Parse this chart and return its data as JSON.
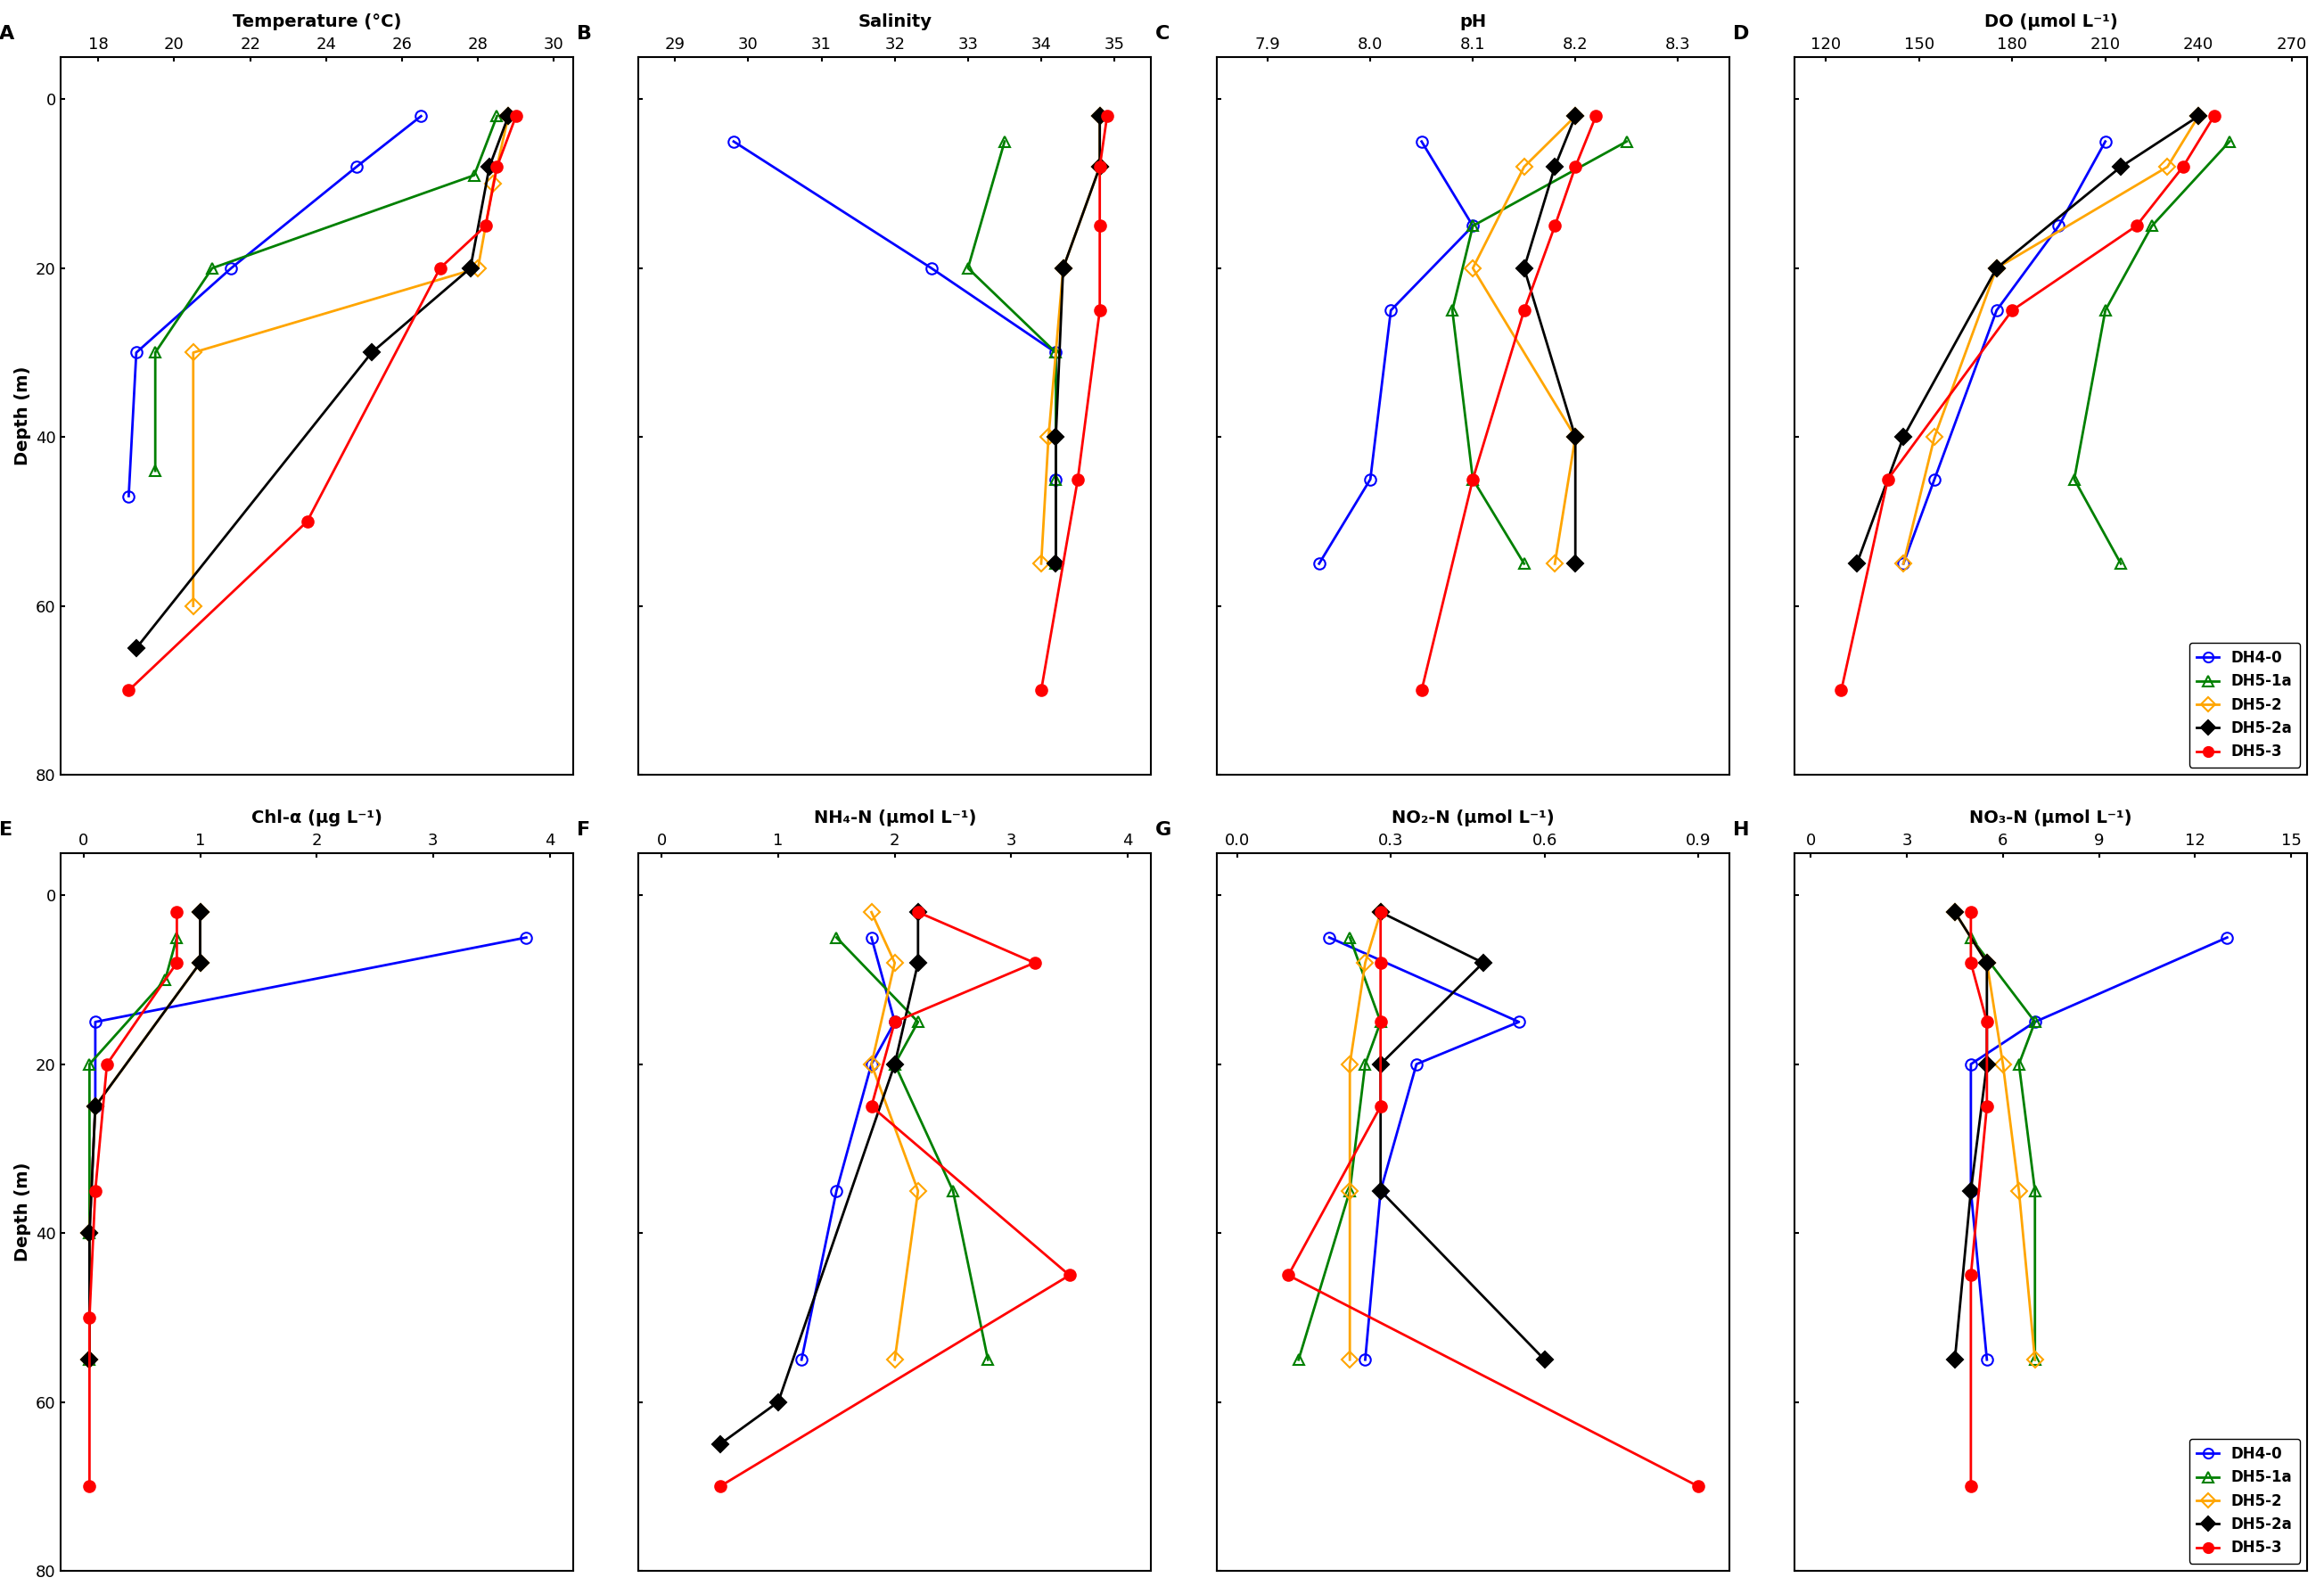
{
  "panels": {
    "A": {
      "title": "Temperature (°C)",
      "xlabel_ticks": [
        18,
        20,
        22,
        24,
        26,
        28,
        30
      ],
      "xlim": [
        17,
        30.5
      ],
      "series": {
        "DH4-0": {
          "x": [
            26.5,
            24.8,
            21.5,
            19.0,
            18.8
          ],
          "y": [
            2,
            8,
            20,
            30,
            47
          ]
        },
        "DH5-1a": {
          "x": [
            28.5,
            27.9,
            21.0,
            19.5,
            19.5
          ],
          "y": [
            2,
            9,
            20,
            30,
            44
          ]
        },
        "DH5-2": {
          "x": [
            28.8,
            28.4,
            28.0,
            20.5,
            20.5
          ],
          "y": [
            2,
            10,
            20,
            30,
            60
          ]
        },
        "DH5-2a": {
          "x": [
            28.8,
            28.3,
            27.8,
            25.2,
            19.0
          ],
          "y": [
            2,
            8,
            20,
            30,
            65
          ]
        },
        "DH5-3": {
          "x": [
            29.0,
            28.5,
            28.2,
            27.0,
            23.5,
            18.8
          ],
          "y": [
            2,
            8,
            15,
            20,
            50,
            70
          ]
        }
      }
    },
    "B": {
      "title": "Salinity",
      "xlabel_ticks": [
        29,
        30,
        31,
        32,
        33,
        34,
        35
      ],
      "xlim": [
        28.5,
        35.5
      ],
      "series": {
        "DH4-0": {
          "x": [
            29.8,
            32.5,
            34.2,
            34.2,
            34.2
          ],
          "y": [
            5,
            20,
            30,
            45,
            55
          ]
        },
        "DH5-1a": {
          "x": [
            33.5,
            33.0,
            34.2,
            34.2,
            34.2
          ],
          "y": [
            5,
            20,
            30,
            45,
            55
          ]
        },
        "DH5-2": {
          "x": [
            34.8,
            34.8,
            34.3,
            34.1,
            34.0
          ],
          "y": [
            2,
            8,
            20,
            40,
            55
          ]
        },
        "DH5-2a": {
          "x": [
            34.8,
            34.8,
            34.3,
            34.2,
            34.2
          ],
          "y": [
            2,
            8,
            20,
            40,
            55
          ]
        },
        "DH5-3": {
          "x": [
            34.9,
            34.8,
            34.8,
            34.8,
            34.5,
            34.0
          ],
          "y": [
            2,
            8,
            15,
            25,
            45,
            70
          ]
        }
      }
    },
    "C": {
      "title": "pH",
      "xlabel_ticks": [
        7.9,
        8.0,
        8.1,
        8.2,
        8.3
      ],
      "xlim": [
        7.85,
        8.35
      ],
      "series": {
        "DH4-0": {
          "x": [
            8.05,
            8.1,
            8.02,
            8.0,
            7.95
          ],
          "y": [
            5,
            15,
            25,
            45,
            55
          ]
        },
        "DH5-1a": {
          "x": [
            8.25,
            8.1,
            8.08,
            8.1,
            8.15
          ],
          "y": [
            5,
            15,
            25,
            45,
            55
          ]
        },
        "DH5-2": {
          "x": [
            8.2,
            8.15,
            8.1,
            8.2,
            8.18
          ],
          "y": [
            2,
            8,
            20,
            40,
            55
          ]
        },
        "DH5-2a": {
          "x": [
            8.2,
            8.18,
            8.15,
            8.2,
            8.2
          ],
          "y": [
            2,
            8,
            20,
            40,
            55
          ]
        },
        "DH5-3": {
          "x": [
            8.22,
            8.2,
            8.18,
            8.15,
            8.1,
            8.05
          ],
          "y": [
            2,
            8,
            15,
            25,
            45,
            70
          ]
        }
      }
    },
    "D": {
      "title": "DO (μmol L⁻¹)",
      "xlabel_ticks": [
        120,
        150,
        180,
        210,
        240,
        270
      ],
      "xlim": [
        110,
        275
      ],
      "series": {
        "DH4-0": {
          "x": [
            210,
            195,
            175,
            155,
            145
          ],
          "y": [
            5,
            15,
            25,
            45,
            55
          ]
        },
        "DH5-1a": {
          "x": [
            250,
            225,
            210,
            200,
            215
          ],
          "y": [
            5,
            15,
            25,
            45,
            55
          ]
        },
        "DH5-2": {
          "x": [
            240,
            230,
            175,
            155,
            145
          ],
          "y": [
            2,
            8,
            20,
            40,
            55
          ]
        },
        "DH5-2a": {
          "x": [
            240,
            215,
            175,
            145,
            130
          ],
          "y": [
            2,
            8,
            20,
            40,
            55
          ]
        },
        "DH5-3": {
          "x": [
            245,
            235,
            220,
            180,
            140,
            125
          ],
          "y": [
            2,
            8,
            15,
            25,
            45,
            70
          ]
        }
      }
    },
    "E": {
      "title": "Chl-α (μg L⁻¹)",
      "xlabel_ticks": [
        0,
        1,
        2,
        3,
        4
      ],
      "xlim": [
        -0.2,
        4.2
      ],
      "series": {
        "DH4-0": {
          "x": [
            3.8,
            0.1,
            0.1,
            0.05,
            0.05
          ],
          "y": [
            5,
            15,
            25,
            40,
            55
          ]
        },
        "DH5-1a": {
          "x": [
            0.8,
            0.7,
            0.05,
            0.05,
            0.05
          ],
          "y": [
            5,
            10,
            20,
            40,
            55
          ]
        },
        "DH5-2": {
          "x": [
            1.0,
            1.0,
            0.1,
            0.05,
            0.05
          ],
          "y": [
            2,
            8,
            25,
            40,
            55
          ]
        },
        "DH5-2a": {
          "x": [
            1.0,
            1.0,
            0.1,
            0.05,
            0.05
          ],
          "y": [
            2,
            8,
            25,
            40,
            55
          ]
        },
        "DH5-3": {
          "x": [
            0.8,
            0.8,
            0.2,
            0.1,
            0.05,
            0.05
          ],
          "y": [
            2,
            8,
            20,
            35,
            50,
            70
          ]
        }
      }
    },
    "F": {
      "title": "NH₄-N (μmol L⁻¹)",
      "xlabel_ticks": [
        0,
        1,
        2,
        3,
        4
      ],
      "xlim": [
        -0.2,
        4.2
      ],
      "series": {
        "DH4-0": {
          "x": [
            1.8,
            2.0,
            1.8,
            1.5,
            1.2
          ],
          "y": [
            5,
            15,
            20,
            35,
            55
          ]
        },
        "DH5-1a": {
          "x": [
            1.5,
            2.2,
            2.0,
            2.5,
            2.8
          ],
          "y": [
            5,
            15,
            20,
            35,
            55
          ]
        },
        "DH5-2": {
          "x": [
            1.8,
            2.0,
            1.8,
            2.2,
            2.0
          ],
          "y": [
            2,
            8,
            20,
            35,
            55
          ]
        },
        "DH5-2a": {
          "x": [
            2.2,
            2.2,
            2.0,
            1.0,
            0.5
          ],
          "y": [
            2,
            8,
            20,
            60,
            65
          ]
        },
        "DH5-3": {
          "x": [
            2.2,
            3.2,
            2.0,
            1.8,
            3.5,
            0.5
          ],
          "y": [
            2,
            8,
            15,
            25,
            45,
            70
          ]
        }
      }
    },
    "G": {
      "title": "NO₂-N (μmol L⁻¹)",
      "xlabel_ticks": [
        0.0,
        0.3,
        0.6,
        0.9
      ],
      "xlim": [
        -0.04,
        0.96
      ],
      "series": {
        "DH4-0": {
          "x": [
            0.18,
            0.55,
            0.35,
            0.28,
            0.25
          ],
          "y": [
            5,
            15,
            20,
            35,
            55
          ]
        },
        "DH5-1a": {
          "x": [
            0.22,
            0.28,
            0.25,
            0.22,
            0.12
          ],
          "y": [
            5,
            15,
            20,
            35,
            55
          ]
        },
        "DH5-2": {
          "x": [
            0.28,
            0.25,
            0.22,
            0.22,
            0.22
          ],
          "y": [
            2,
            8,
            20,
            35,
            55
          ]
        },
        "DH5-2a": {
          "x": [
            0.28,
            0.48,
            0.28,
            0.28,
            0.6
          ],
          "y": [
            2,
            8,
            20,
            35,
            55
          ]
        },
        "DH5-3": {
          "x": [
            0.28,
            0.28,
            0.28,
            0.28,
            0.1,
            0.9
          ],
          "y": [
            2,
            8,
            15,
            25,
            45,
            70
          ]
        }
      }
    },
    "H": {
      "title": "NO₃-N (μmol L⁻¹)",
      "xlabel_ticks": [
        0,
        3,
        6,
        9,
        12,
        15
      ],
      "xlim": [
        -0.5,
        15.5
      ],
      "series": {
        "DH4-0": {
          "x": [
            13.0,
            7.0,
            5.0,
            5.0,
            5.5
          ],
          "y": [
            5,
            15,
            20,
            35,
            55
          ]
        },
        "DH5-1a": {
          "x": [
            5.0,
            7.0,
            6.5,
            7.0,
            7.0
          ],
          "y": [
            5,
            15,
            20,
            35,
            55
          ]
        },
        "DH5-2": {
          "x": [
            4.5,
            5.5,
            6.0,
            6.5,
            7.0
          ],
          "y": [
            2,
            8,
            20,
            35,
            55
          ]
        },
        "DH5-2a": {
          "x": [
            4.5,
            5.5,
            5.5,
            5.0,
            4.5
          ],
          "y": [
            2,
            8,
            20,
            35,
            55
          ]
        },
        "DH5-3": {
          "x": [
            5.0,
            5.0,
            5.5,
            5.5,
            5.0,
            5.0
          ],
          "y": [
            2,
            8,
            15,
            25,
            45,
            70
          ]
        }
      }
    }
  },
  "series_styles": {
    "DH4-0": {
      "color": "#0000FF",
      "marker": "o",
      "fillstyle": "none",
      "linestyle": "-"
    },
    "DH5-1a": {
      "color": "#008000",
      "marker": "^",
      "fillstyle": "none",
      "linestyle": "-"
    },
    "DH5-2": {
      "color": "#FFA500",
      "marker": "D",
      "fillstyle": "none",
      "linestyle": "-"
    },
    "DH5-2a": {
      "color": "#000000",
      "marker": "D",
      "fillstyle": "full",
      "linestyle": "-"
    },
    "DH5-3": {
      "color": "#FF0000",
      "marker": "o",
      "fillstyle": "full",
      "linestyle": "-"
    }
  },
  "ylim": [
    80,
    -5
  ],
  "yticks": [
    0,
    20,
    40,
    60,
    80
  ],
  "panel_labels": [
    "A",
    "B",
    "C",
    "D",
    "E",
    "F",
    "G",
    "H"
  ],
  "legend_series": [
    "DH4-0",
    "DH5-1a",
    "DH5-2",
    "DH5-2a",
    "DH5-3"
  ],
  "ylabel": "Depth (m)",
  "background_color": "#ffffff",
  "marker_size": 9,
  "linewidth": 2
}
